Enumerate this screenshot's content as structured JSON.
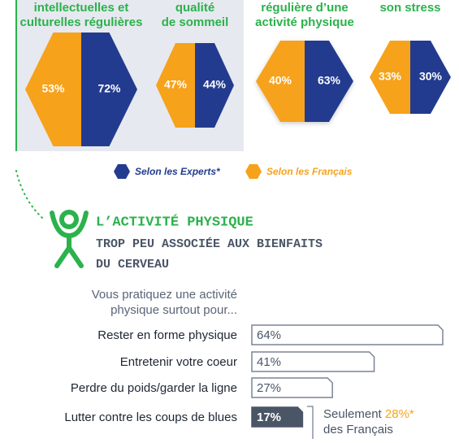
{
  "hexagons": [
    {
      "title": [
        "intellectuelles et",
        "culturelles régulières"
      ],
      "francais": 53,
      "francais_label": "53%",
      "experts": 72,
      "experts_label": "72%"
    },
    {
      "title": [
        "qualité",
        "de sommeil"
      ],
      "francais": 47,
      "francais_label": "47%",
      "experts": 44,
      "experts_label": "44%"
    },
    {
      "title": [
        "régulière d’une",
        "activité physique"
      ],
      "francais": 40,
      "francais_label": "40%",
      "experts": 63,
      "experts_label": "63%"
    },
    {
      "title": [
        "son stress"
      ],
      "francais": 33,
      "francais_label": "33%",
      "experts": 30,
      "experts_label": "30%"
    }
  ],
  "legend": {
    "experts": "Selon les Experts*",
    "francais": "Selon les Français",
    "experts_color": "#233b8f",
    "francais_color": "#f7a21b"
  },
  "section": {
    "title": "L’ACTIVITÉ PHYSIQUE",
    "subtitle": [
      "TROP PEU ASSOCIÉE AUX BIENFAITS",
      "DU CERVEAU"
    ]
  },
  "chart_data": {
    "type": "bar",
    "question": [
      "Vous pratiquez une activité",
      "physique surtout pour..."
    ],
    "categories": [
      "Rester en forme physique",
      "Entretenir votre coeur",
      "Perdre du poids/garder la ligne",
      "Lutter contre les coups de blues"
    ],
    "values": [
      64,
      41,
      27,
      17
    ],
    "value_labels": [
      "64%",
      "41%",
      "27%",
      "17%"
    ],
    "colors": [
      "#ffffff",
      "#ffffff",
      "#ffffff",
      "#4a5566"
    ]
  },
  "note": {
    "prefix": "Seulement ",
    "highlight": "28%*",
    "line2": "des Français"
  }
}
